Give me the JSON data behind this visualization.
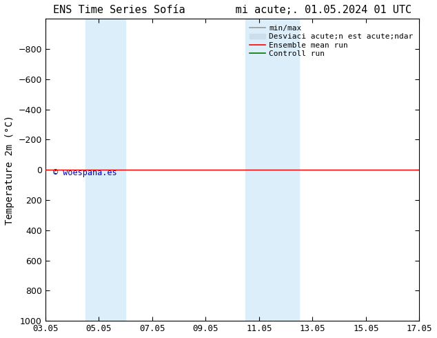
{
  "title": "ENS Time Series Sofía        mi acute;. 01.05.2024 01 UTC",
  "ylabel": "Temperature 2m (°C)",
  "ylim": [
    -1000,
    1000
  ],
  "yticks": [
    -800,
    -600,
    -400,
    -200,
    0,
    200,
    400,
    600,
    800,
    1000
  ],
  "xticks_labels": [
    "03.05",
    "05.05",
    "07.05",
    "09.05",
    "11.05",
    "13.05",
    "15.05",
    "17.05"
  ],
  "xticks_values": [
    0,
    2,
    4,
    6,
    8,
    10,
    12,
    14
  ],
  "shaded_regions": [
    {
      "xmin": 1.5,
      "xmax": 3.0
    },
    {
      "xmin": 7.5,
      "xmax": 9.5
    }
  ],
  "shaded_color": "#dceef9",
  "background_color": "#ffffff",
  "line_y": 0,
  "ensemble_mean_color": "#ff0000",
  "control_run_color": "#007700",
  "min_max_color": "#999999",
  "std_dev_color": "#ccddee",
  "watermark_text": "© woespana.es",
  "watermark_color": "#0000bb",
  "title_fontsize": 11,
  "tick_fontsize": 9,
  "ylabel_fontsize": 10,
  "legend_fontsize": 8
}
